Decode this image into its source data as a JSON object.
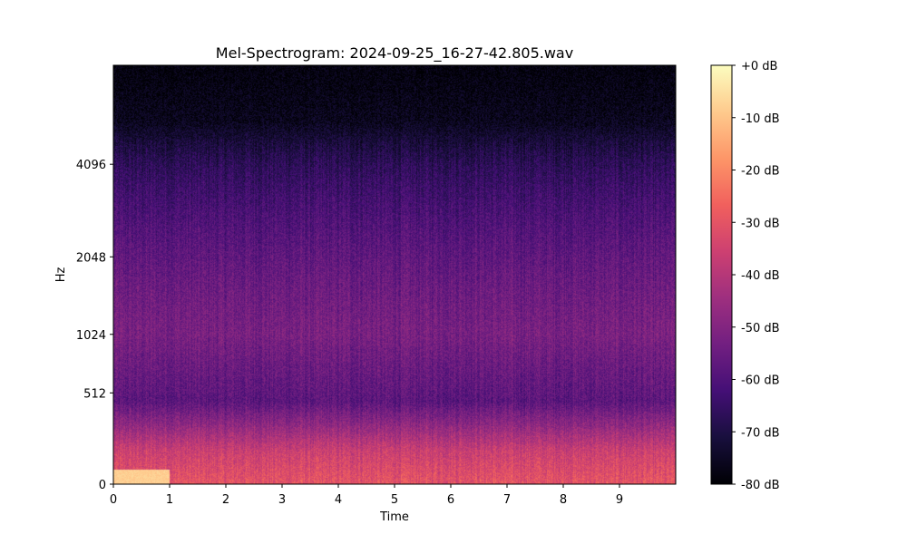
{
  "chart_data": {
    "type": "heatmap",
    "title": "Mel-Spectrogram: 2024-09-25_16-27-42.805.wav",
    "xlabel": "Time",
    "ylabel": "Hz",
    "xlim": [
      0,
      10
    ],
    "x_ticks": [
      {
        "value": 0,
        "label": "0"
      },
      {
        "value": 1,
        "label": "1"
      },
      {
        "value": 2,
        "label": "2"
      },
      {
        "value": 3,
        "label": "3"
      },
      {
        "value": 4,
        "label": "4"
      },
      {
        "value": 5,
        "label": "5"
      },
      {
        "value": 6,
        "label": "6"
      },
      {
        "value": 7,
        "label": "7"
      },
      {
        "value": 8,
        "label": "8"
      },
      {
        "value": 9,
        "label": "9"
      }
    ],
    "y_scale": "mel",
    "y_ticks": [
      {
        "value": 0,
        "label": "0"
      },
      {
        "value": 512,
        "label": "512"
      },
      {
        "value": 1024,
        "label": "1024"
      },
      {
        "value": 2048,
        "label": "2048"
      },
      {
        "value": 4096,
        "label": "4096"
      }
    ],
    "colormap": "magma",
    "colorbar": {
      "range_db": [
        -80,
        0
      ],
      "ticks": [
        {
          "value": 0,
          "label": "+0 dB"
        },
        {
          "value": -10,
          "label": "-10 dB"
        },
        {
          "value": -20,
          "label": "-20 dB"
        },
        {
          "value": -30,
          "label": "-30 dB"
        },
        {
          "value": -40,
          "label": "-40 dB"
        },
        {
          "value": -50,
          "label": "-50 dB"
        },
        {
          "value": -60,
          "label": "-60 dB"
        },
        {
          "value": -70,
          "label": "-70 dB"
        },
        {
          "value": -80,
          "label": "-80 dB"
        }
      ],
      "colors": [
        "#000004",
        "#180f3d",
        "#440f76",
        "#721f81",
        "#9e2f7f",
        "#cd4071",
        "#f1605d",
        "#fd9668",
        "#feca8d",
        "#fcfdbf"
      ]
    },
    "typical_level_db_by_frequency": [
      {
        "hz": 0,
        "db": -30
      },
      {
        "hz": 150,
        "db": -36
      },
      {
        "hz": 300,
        "db": -48
      },
      {
        "hz": 450,
        "db": -58
      },
      {
        "hz": 512,
        "db": -57
      },
      {
        "hz": 1024,
        "db": -52
      },
      {
        "hz": 2048,
        "db": -57
      },
      {
        "hz": 4096,
        "db": -67
      },
      {
        "hz": 5500,
        "db": -76
      },
      {
        "hz": 8000,
        "db": -79
      }
    ]
  }
}
